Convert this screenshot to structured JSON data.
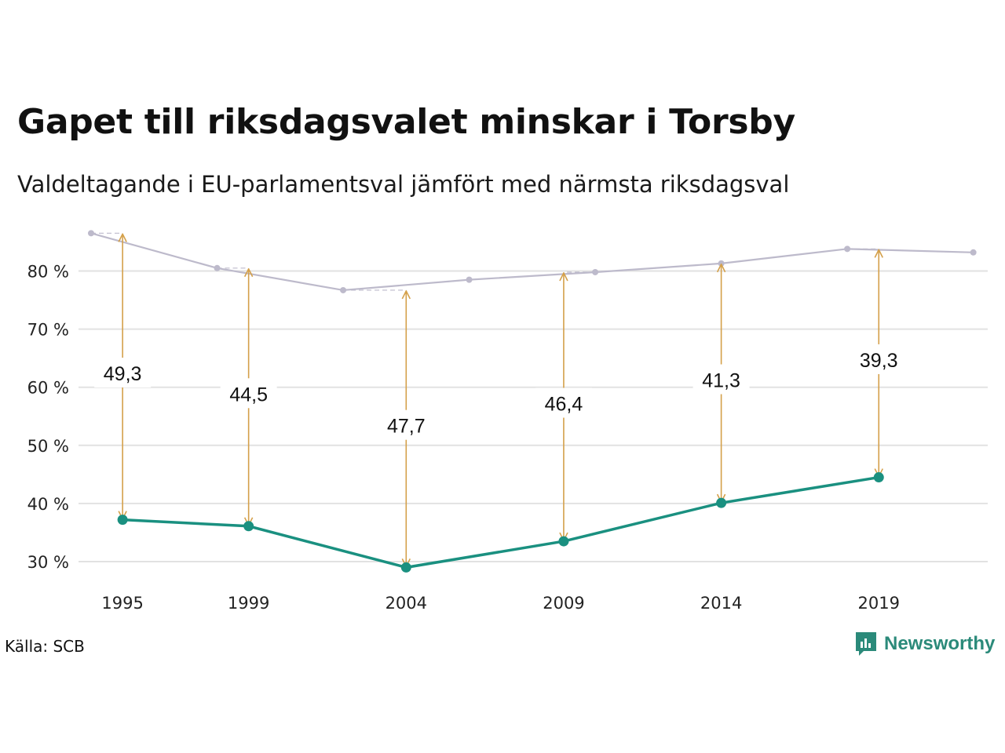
{
  "title": "Gapet till riksdagsvalet minskar i Torsby",
  "subtitle": "Valdeltagande i EU-parlamentsval jämfört med närmsta riksdagsval",
  "source": "Källa: SCB",
  "brand": "Newsworthy",
  "colors": {
    "eu": "#1a9080",
    "riksdag": "#bdbacb",
    "arrow": "#d4a04a",
    "grid": "#e2e2e2",
    "brand": "#2b8a7a"
  },
  "chart_data": {
    "type": "line",
    "ylim": [
      25,
      88
    ],
    "xlim": [
      1994,
      2023
    ],
    "y_ticks": [
      {
        "value": 30,
        "label": "30 %"
      },
      {
        "value": 40,
        "label": "40 %"
      },
      {
        "value": 50,
        "label": "50 %"
      },
      {
        "value": 60,
        "label": "60 %"
      },
      {
        "value": 70,
        "label": "70 %"
      },
      {
        "value": 80,
        "label": "80 %"
      }
    ],
    "x_ticks": [
      {
        "value": 1995,
        "label": "1995"
      },
      {
        "value": 1999,
        "label": "1999"
      },
      {
        "value": 2004,
        "label": "2004"
      },
      {
        "value": 2009,
        "label": "2009"
      },
      {
        "value": 2014,
        "label": "2014"
      },
      {
        "value": 2019,
        "label": "2019"
      }
    ],
    "series": [
      {
        "key": "eu",
        "points": [
          {
            "x": 1995,
            "y": 37.2
          },
          {
            "x": 1999,
            "y": 36.1
          },
          {
            "x": 2004,
            "y": 29.0
          },
          {
            "x": 2009,
            "y": 33.5
          },
          {
            "x": 2014,
            "y": 40.1
          },
          {
            "x": 2019,
            "y": 44.5
          }
        ]
      },
      {
        "key": "riksdag",
        "points": [
          {
            "x": 1994,
            "y": 86.5
          },
          {
            "x": 1998,
            "y": 80.5
          },
          {
            "x": 2002,
            "y": 76.7
          },
          {
            "x": 2006,
            "y": 78.5
          },
          {
            "x": 2010,
            "y": 79.8
          },
          {
            "x": 2014,
            "y": 81.3
          },
          {
            "x": 2018,
            "y": 83.8
          },
          {
            "x": 2022,
            "y": 83.2
          }
        ]
      }
    ],
    "gaps": [
      {
        "x": 1995,
        "from": 37.2,
        "to": 86.5,
        "label": "49,3"
      },
      {
        "x": 1999,
        "from": 36.1,
        "to": 80.5,
        "label": "44,5"
      },
      {
        "x": 2004,
        "from": 29.0,
        "to": 76.7,
        "label": "47,7"
      },
      {
        "x": 2009,
        "from": 33.5,
        "to": 79.8,
        "label": "46,4"
      },
      {
        "x": 2014,
        "from": 40.1,
        "to": 81.3,
        "label": "41,3"
      },
      {
        "x": 2019,
        "from": 44.5,
        "to": 83.8,
        "label": "39,3"
      }
    ]
  }
}
